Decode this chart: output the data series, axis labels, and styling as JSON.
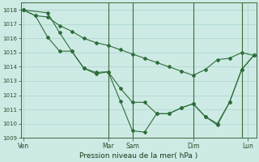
{
  "xlabel": "Pression niveau de la mer( hPa )",
  "bg_color": "#ceeae4",
  "grid_color": "#a8d5ce",
  "line_color": "#2d6e3a",
  "vline_color": "#3a6b3a",
  "ylim": [
    1009,
    1018.5
  ],
  "yticks": [
    1009,
    1010,
    1011,
    1012,
    1013,
    1014,
    1015,
    1016,
    1017,
    1018
  ],
  "xlim": [
    -0.2,
    19.2
  ],
  "xtick_positions": [
    0,
    7,
    9,
    14,
    18.5
  ],
  "xtick_labels": [
    "Ven",
    "Mar",
    "Sam",
    "Dim",
    "Lun"
  ],
  "vlines": [
    7,
    9,
    14,
    18
  ],
  "series1_x": [
    0,
    1,
    2,
    3,
    4,
    5,
    6,
    7,
    8,
    9,
    10,
    11,
    12,
    13,
    14,
    15,
    16,
    17,
    18,
    19
  ],
  "series1_y": [
    1018.0,
    1017.6,
    1017.5,
    1016.9,
    1016.5,
    1016.0,
    1015.7,
    1015.5,
    1015.2,
    1014.9,
    1014.6,
    1014.3,
    1014.0,
    1013.7,
    1013.4,
    1013.8,
    1014.5,
    1014.6,
    1015.0,
    1014.8
  ],
  "series2_x": [
    0,
    2,
    3,
    4,
    5,
    6,
    7,
    8,
    9,
    10,
    11,
    12,
    13,
    14,
    15,
    16,
    17,
    18,
    19
  ],
  "series2_y": [
    1018.0,
    1017.8,
    1016.4,
    1015.1,
    1013.9,
    1013.6,
    1013.65,
    1011.6,
    1009.5,
    1009.4,
    1010.7,
    1010.7,
    1011.1,
    1011.4,
    1010.5,
    1010.0,
    1011.5,
    1013.8,
    1014.8
  ],
  "series3_x": [
    0,
    1,
    2,
    3,
    4,
    5,
    6,
    7,
    8,
    9,
    10,
    11,
    12,
    13,
    14,
    15,
    16,
    17,
    18,
    19
  ],
  "series3_y": [
    1018.0,
    1017.6,
    1016.1,
    1015.1,
    1015.1,
    1013.9,
    1013.5,
    1013.65,
    1012.5,
    1011.5,
    1011.5,
    1010.7,
    1010.7,
    1011.1,
    1011.4,
    1010.5,
    1009.9,
    1011.5,
    1013.8,
    1014.8
  ]
}
